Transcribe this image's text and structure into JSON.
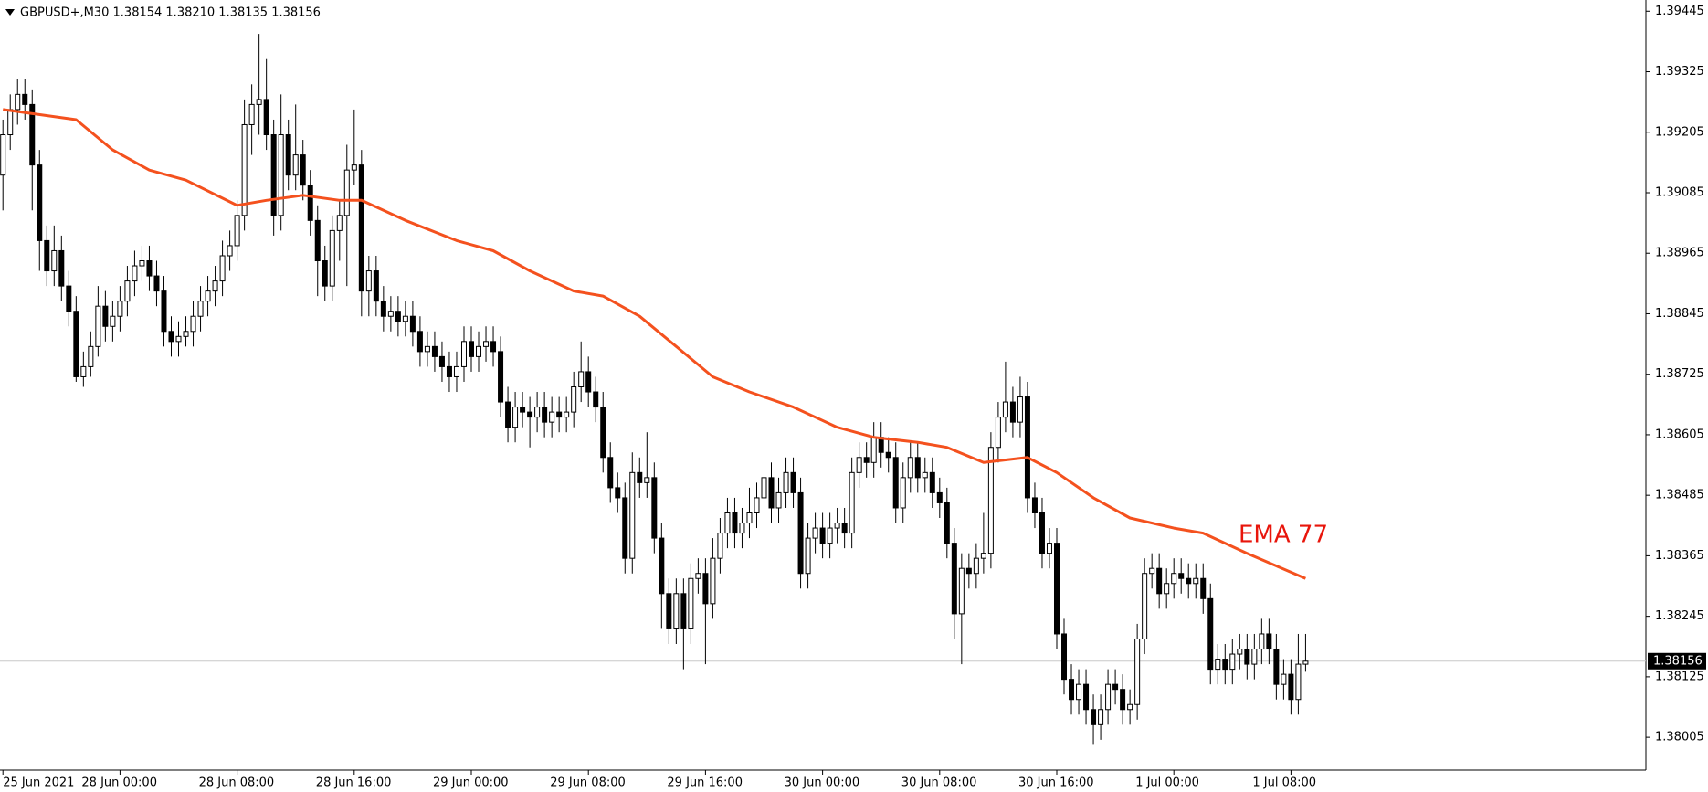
{
  "chart_data": {
    "type": "candlestick",
    "title": "GBPUSD+,M30  1.38154 1.38210 1.38135 1.38156",
    "up_color": "#ffffff",
    "down_color": "#000000",
    "outline_color": "#000000",
    "ohlc": [
      [
        1.3912,
        1.3923,
        1.3905,
        1.392
      ],
      [
        1.392,
        1.3928,
        1.3917,
        1.3925
      ],
      [
        1.3925,
        1.3931,
        1.3922,
        1.3928
      ],
      [
        1.3928,
        1.3931,
        1.3923,
        1.3926
      ],
      [
        1.3926,
        1.3929,
        1.3905,
        1.3914
      ],
      [
        1.3914,
        1.3917,
        1.3893,
        1.3899
      ],
      [
        1.3899,
        1.3902,
        1.389,
        1.3893
      ],
      [
        1.3893,
        1.3902,
        1.389,
        1.3897
      ],
      [
        1.3897,
        1.39,
        1.3887,
        1.389
      ],
      [
        1.389,
        1.3893,
        1.3882,
        1.3885
      ],
      [
        1.3885,
        1.3888,
        1.3871,
        1.3872
      ],
      [
        1.3872,
        1.3877,
        1.387,
        1.3874
      ],
      [
        1.3874,
        1.3881,
        1.3872,
        1.3878
      ],
      [
        1.3878,
        1.389,
        1.3876,
        1.3886
      ],
      [
        1.3886,
        1.3889,
        1.3879,
        1.3882
      ],
      [
        1.3882,
        1.3887,
        1.3879,
        1.3884
      ],
      [
        1.3884,
        1.389,
        1.3881,
        1.3887
      ],
      [
        1.3887,
        1.3894,
        1.3884,
        1.3891
      ],
      [
        1.3891,
        1.3897,
        1.3888,
        1.3894
      ],
      [
        1.3894,
        1.3898,
        1.3891,
        1.3895
      ],
      [
        1.3895,
        1.3898,
        1.3889,
        1.3892
      ],
      [
        1.3892,
        1.3895,
        1.3886,
        1.3889
      ],
      [
        1.3889,
        1.3892,
        1.3878,
        1.3881
      ],
      [
        1.3881,
        1.3884,
        1.3876,
        1.3879
      ],
      [
        1.3879,
        1.3883,
        1.3876,
        1.388
      ],
      [
        1.388,
        1.3884,
        1.3878,
        1.3881
      ],
      [
        1.3881,
        1.3887,
        1.3878,
        1.3884
      ],
      [
        1.3884,
        1.389,
        1.3881,
        1.3887
      ],
      [
        1.3887,
        1.3892,
        1.3884,
        1.3889
      ],
      [
        1.3889,
        1.3894,
        1.3886,
        1.3891
      ],
      [
        1.3891,
        1.3899,
        1.3888,
        1.3896
      ],
      [
        1.3896,
        1.3901,
        1.3893,
        1.3898
      ],
      [
        1.3898,
        1.3907,
        1.3895,
        1.3904
      ],
      [
        1.3904,
        1.3927,
        1.3901,
        1.3922
      ],
      [
        1.3922,
        1.393,
        1.3916,
        1.3926
      ],
      [
        1.3926,
        1.394,
        1.392,
        1.3927
      ],
      [
        1.3927,
        1.3935,
        1.3917,
        1.392
      ],
      [
        1.392,
        1.3923,
        1.39,
        1.3904
      ],
      [
        1.3904,
        1.3928,
        1.3901,
        1.392
      ],
      [
        1.392,
        1.3923,
        1.3909,
        1.3912
      ],
      [
        1.3912,
        1.3926,
        1.3909,
        1.3916
      ],
      [
        1.3916,
        1.3919,
        1.3907,
        1.391
      ],
      [
        1.391,
        1.3913,
        1.39,
        1.3903
      ],
      [
        1.3903,
        1.3906,
        1.3888,
        1.3895
      ],
      [
        1.3895,
        1.3898,
        1.3887,
        1.389
      ],
      [
        1.389,
        1.3904,
        1.3887,
        1.3901
      ],
      [
        1.3901,
        1.3907,
        1.3895,
        1.3904
      ],
      [
        1.3904,
        1.3918,
        1.389,
        1.3913
      ],
      [
        1.3913,
        1.3925,
        1.391,
        1.3914
      ],
      [
        1.3914,
        1.3917,
        1.3884,
        1.3889
      ],
      [
        1.3889,
        1.3896,
        1.3884,
        1.3893
      ],
      [
        1.3893,
        1.3896,
        1.3884,
        1.3887
      ],
      [
        1.3887,
        1.389,
        1.3881,
        1.3884
      ],
      [
        1.3884,
        1.3888,
        1.3881,
        1.3885
      ],
      [
        1.3885,
        1.3888,
        1.388,
        1.3883
      ],
      [
        1.3883,
        1.3887,
        1.388,
        1.3884
      ],
      [
        1.3884,
        1.3887,
        1.3878,
        1.3881
      ],
      [
        1.3881,
        1.3884,
        1.3874,
        1.3877
      ],
      [
        1.3877,
        1.3881,
        1.3874,
        1.3878
      ],
      [
        1.3878,
        1.3881,
        1.3873,
        1.3876
      ],
      [
        1.3876,
        1.3879,
        1.3871,
        1.3874
      ],
      [
        1.3874,
        1.3877,
        1.3869,
        1.3872
      ],
      [
        1.3872,
        1.3877,
        1.3869,
        1.3874
      ],
      [
        1.3874,
        1.3882,
        1.3871,
        1.3879
      ],
      [
        1.3879,
        1.3882,
        1.3873,
        1.3876
      ],
      [
        1.3876,
        1.3881,
        1.3873,
        1.3878
      ],
      [
        1.3878,
        1.3882,
        1.3875,
        1.3879
      ],
      [
        1.3879,
        1.3882,
        1.3874,
        1.3877
      ],
      [
        1.3877,
        1.388,
        1.3864,
        1.3867
      ],
      [
        1.3867,
        1.387,
        1.3859,
        1.3862
      ],
      [
        1.3862,
        1.3869,
        1.3859,
        1.3866
      ],
      [
        1.3866,
        1.3869,
        1.3862,
        1.3865
      ],
      [
        1.3865,
        1.3868,
        1.3858,
        1.3864
      ],
      [
        1.3864,
        1.3869,
        1.3861,
        1.3866
      ],
      [
        1.3866,
        1.3869,
        1.386,
        1.3863
      ],
      [
        1.3863,
        1.3868,
        1.386,
        1.3865
      ],
      [
        1.3865,
        1.3868,
        1.3861,
        1.3864
      ],
      [
        1.3864,
        1.3868,
        1.3861,
        1.3865
      ],
      [
        1.3865,
        1.3873,
        1.3862,
        1.387
      ],
      [
        1.387,
        1.3879,
        1.3867,
        1.3873
      ],
      [
        1.3873,
        1.3876,
        1.3866,
        1.3869
      ],
      [
        1.3869,
        1.3872,
        1.3863,
        1.3866
      ],
      [
        1.3866,
        1.3869,
        1.3853,
        1.3856
      ],
      [
        1.3856,
        1.3859,
        1.3847,
        1.385
      ],
      [
        1.385,
        1.3853,
        1.3845,
        1.3848
      ],
      [
        1.3848,
        1.3851,
        1.3833,
        1.3836
      ],
      [
        1.3836,
        1.3857,
        1.3833,
        1.3853
      ],
      [
        1.3853,
        1.3856,
        1.3848,
        1.3851
      ],
      [
        1.3851,
        1.3861,
        1.3848,
        1.3852
      ],
      [
        1.3852,
        1.3855,
        1.3837,
        1.384
      ],
      [
        1.384,
        1.3843,
        1.3822,
        1.3829
      ],
      [
        1.3829,
        1.3832,
        1.3819,
        1.3822
      ],
      [
        1.3822,
        1.3832,
        1.3819,
        1.3829
      ],
      [
        1.3829,
        1.3832,
        1.3814,
        1.3822
      ],
      [
        1.3822,
        1.3835,
        1.3819,
        1.3832
      ],
      [
        1.3832,
        1.3836,
        1.3829,
        1.3833
      ],
      [
        1.3833,
        1.3836,
        1.3815,
        1.3827
      ],
      [
        1.3827,
        1.384,
        1.3824,
        1.3836
      ],
      [
        1.3836,
        1.3844,
        1.3833,
        1.3841
      ],
      [
        1.3841,
        1.3848,
        1.3838,
        1.3845
      ],
      [
        1.3845,
        1.3848,
        1.3838,
        1.3841
      ],
      [
        1.3841,
        1.3846,
        1.3838,
        1.3843
      ],
      [
        1.3843,
        1.385,
        1.384,
        1.3845
      ],
      [
        1.3845,
        1.3851,
        1.3842,
        1.3848
      ],
      [
        1.3848,
        1.3855,
        1.3845,
        1.3852
      ],
      [
        1.3852,
        1.3855,
        1.3843,
        1.3846
      ],
      [
        1.3846,
        1.3852,
        1.3843,
        1.3849
      ],
      [
        1.3849,
        1.3856,
        1.3846,
        1.3853
      ],
      [
        1.3853,
        1.3856,
        1.3846,
        1.3849
      ],
      [
        1.3849,
        1.3852,
        1.383,
        1.3833
      ],
      [
        1.3833,
        1.3843,
        1.383,
        1.384
      ],
      [
        1.384,
        1.3845,
        1.3837,
        1.3842
      ],
      [
        1.3842,
        1.3845,
        1.3836,
        1.3839
      ],
      [
        1.3839,
        1.3845,
        1.3836,
        1.3842
      ],
      [
        1.3842,
        1.3846,
        1.3839,
        1.3843
      ],
      [
        1.3843,
        1.3846,
        1.3838,
        1.3841
      ],
      [
        1.3841,
        1.3856,
        1.3838,
        1.3853
      ],
      [
        1.3853,
        1.3859,
        1.385,
        1.3856
      ],
      [
        1.3856,
        1.3859,
        1.3852,
        1.3855
      ],
      [
        1.3855,
        1.3863,
        1.3852,
        1.386
      ],
      [
        1.386,
        1.3863,
        1.3854,
        1.3857
      ],
      [
        1.3857,
        1.386,
        1.3853,
        1.3856
      ],
      [
        1.3856,
        1.3859,
        1.3843,
        1.3846
      ],
      [
        1.3846,
        1.3855,
        1.3843,
        1.3852
      ],
      [
        1.3852,
        1.3859,
        1.3849,
        1.3856
      ],
      [
        1.3856,
        1.3859,
        1.3849,
        1.3852
      ],
      [
        1.3852,
        1.3856,
        1.3849,
        1.3853
      ],
      [
        1.3853,
        1.3856,
        1.3846,
        1.3849
      ],
      [
        1.3849,
        1.3852,
        1.3844,
        1.3847
      ],
      [
        1.3847,
        1.385,
        1.3836,
        1.3839
      ],
      [
        1.3839,
        1.3842,
        1.382,
        1.3825
      ],
      [
        1.3825,
        1.3837,
        1.3815,
        1.3834
      ],
      [
        1.3834,
        1.3837,
        1.383,
        1.3833
      ],
      [
        1.3833,
        1.3839,
        1.383,
        1.3836
      ],
      [
        1.3836,
        1.3845,
        1.3833,
        1.3837
      ],
      [
        1.3837,
        1.3861,
        1.3834,
        1.3858
      ],
      [
        1.3858,
        1.3867,
        1.3855,
        1.3864
      ],
      [
        1.3864,
        1.3875,
        1.3861,
        1.3867
      ],
      [
        1.3867,
        1.387,
        1.386,
        1.3863
      ],
      [
        1.3863,
        1.3872,
        1.386,
        1.3868
      ],
      [
        1.3868,
        1.3871,
        1.3845,
        1.3848
      ],
      [
        1.3848,
        1.3851,
        1.3842,
        1.3845
      ],
      [
        1.3845,
        1.3848,
        1.3834,
        1.3837
      ],
      [
        1.3837,
        1.3842,
        1.3834,
        1.3839
      ],
      [
        1.3839,
        1.3842,
        1.3818,
        1.3821
      ],
      [
        1.3821,
        1.3824,
        1.3809,
        1.3812
      ],
      [
        1.3812,
        1.3815,
        1.3805,
        1.3808
      ],
      [
        1.3808,
        1.3814,
        1.3805,
        1.3811
      ],
      [
        1.3811,
        1.3814,
        1.3803,
        1.3806
      ],
      [
        1.3806,
        1.3809,
        1.3799,
        1.3803
      ],
      [
        1.3803,
        1.3809,
        1.38,
        1.3806
      ],
      [
        1.3806,
        1.3814,
        1.3803,
        1.3811
      ],
      [
        1.3811,
        1.3814,
        1.3807,
        1.381
      ],
      [
        1.381,
        1.3813,
        1.3803,
        1.3806
      ],
      [
        1.3806,
        1.381,
        1.3803,
        1.3807
      ],
      [
        1.3807,
        1.3823,
        1.3804,
        1.382
      ],
      [
        1.382,
        1.3836,
        1.3817,
        1.3833
      ],
      [
        1.3833,
        1.3837,
        1.383,
        1.3834
      ],
      [
        1.3834,
        1.3837,
        1.3826,
        1.3829
      ],
      [
        1.3829,
        1.3834,
        1.3826,
        1.3831
      ],
      [
        1.3831,
        1.3836,
        1.3828,
        1.3833
      ],
      [
        1.3833,
        1.3836,
        1.3829,
        1.3832
      ],
      [
        1.3832,
        1.3835,
        1.3828,
        1.3831
      ],
      [
        1.3831,
        1.3835,
        1.3828,
        1.3832
      ],
      [
        1.3832,
        1.3835,
        1.3825,
        1.3828
      ],
      [
        1.3828,
        1.3831,
        1.3811,
        1.3814
      ],
      [
        1.3814,
        1.3819,
        1.3811,
        1.3816
      ],
      [
        1.3816,
        1.3819,
        1.3811,
        1.3814
      ],
      [
        1.3814,
        1.382,
        1.3811,
        1.3817
      ],
      [
        1.3817,
        1.3821,
        1.3814,
        1.3818
      ],
      [
        1.3818,
        1.3821,
        1.3812,
        1.3815
      ],
      [
        1.3815,
        1.3821,
        1.3812,
        1.3818
      ],
      [
        1.3818,
        1.3824,
        1.3815,
        1.3821
      ],
      [
        1.3821,
        1.3824,
        1.3815,
        1.3818
      ],
      [
        1.3818,
        1.3821,
        1.3808,
        1.3811
      ],
      [
        1.3811,
        1.3816,
        1.3808,
        1.3813
      ],
      [
        1.3813,
        1.3816,
        1.3805,
        1.3808
      ],
      [
        1.3808,
        1.3821,
        1.3805,
        1.3815
      ],
      [
        1.3815,
        1.3821,
        1.38135,
        1.38156
      ]
    ],
    "series": [
      {
        "name": "EMA 77",
        "color": "#f4511e",
        "x": [
          0,
          10,
          15,
          20,
          25,
          32,
          36,
          41,
          46,
          49,
          55,
          62,
          67,
          72,
          78,
          82,
          87,
          92,
          97,
          102,
          108,
          114,
          119,
          125,
          129,
          134,
          140,
          144,
          149,
          154,
          160,
          164,
          170,
          178
        ],
        "values": [
          1.3925,
          1.3923,
          1.3917,
          1.3913,
          1.3911,
          1.3906,
          1.3907,
          1.3908,
          1.3907,
          1.3907,
          1.3903,
          1.3899,
          1.3897,
          1.3893,
          1.3889,
          1.3888,
          1.3884,
          1.3878,
          1.3872,
          1.3869,
          1.3866,
          1.3862,
          1.386,
          1.3859,
          1.3858,
          1.3855,
          1.3856,
          1.3853,
          1.3848,
          1.3844,
          1.3842,
          1.3841,
          1.3837,
          1.3832
        ]
      }
    ],
    "last_price": 1.38156,
    "xlim": [
      -0.4,
      224.5
    ],
    "xticks": [
      {
        "value": 0,
        "label": "25 Jun 2021"
      },
      {
        "value": 16,
        "label": "28 Jun 00:00"
      },
      {
        "value": 32,
        "label": "28 Jun 08:00"
      },
      {
        "value": 48,
        "label": "28 Jun 16:00"
      },
      {
        "value": 64,
        "label": "29 Jun 00:00"
      },
      {
        "value": 80,
        "label": "29 Jun 08:00"
      },
      {
        "value": 96,
        "label": "29 Jun 16:00"
      },
      {
        "value": 112,
        "label": "30 Jun 00:00"
      },
      {
        "value": 128,
        "label": "30 Jun 08:00"
      },
      {
        "value": 144,
        "label": "30 Jun 16:00"
      },
      {
        "value": 160,
        "label": "1 Jul 00:00"
      },
      {
        "value": 176,
        "label": "1 Jul 08:00"
      }
    ],
    "ylim": [
      1.3794,
      1.3946
    ],
    "yticks": [
      1.39445,
      1.39325,
      1.39205,
      1.39085,
      1.38965,
      1.38845,
      1.38725,
      1.38605,
      1.38485,
      1.38365,
      1.38245,
      1.38125,
      1.38005
    ]
  }
}
